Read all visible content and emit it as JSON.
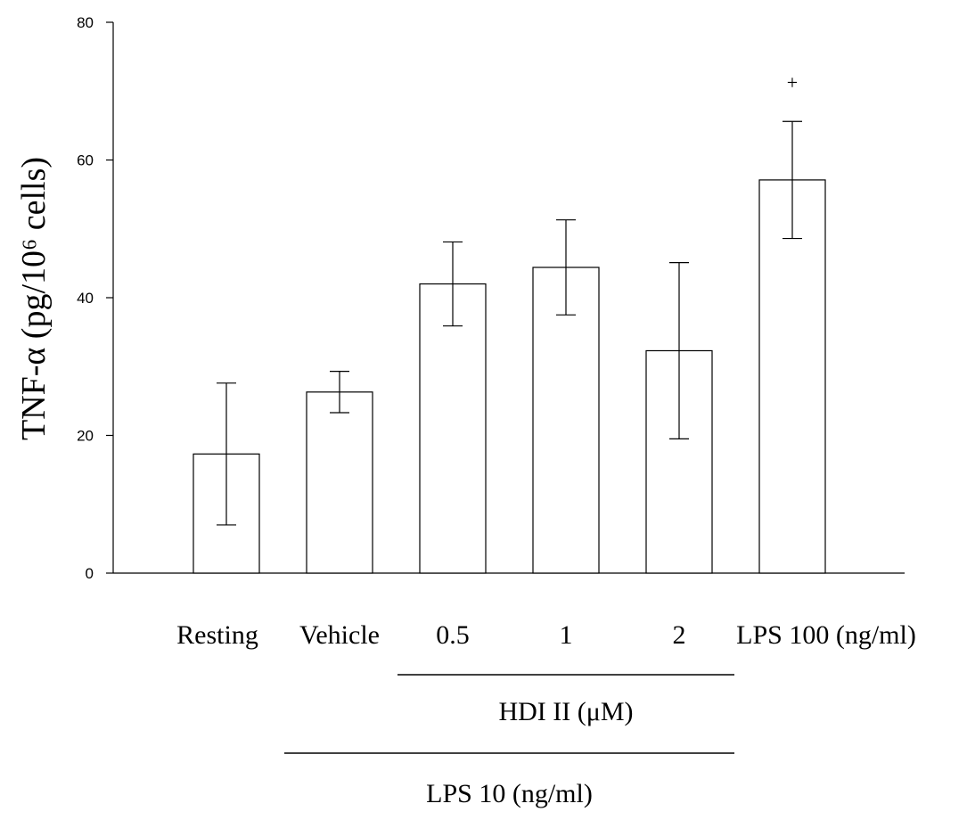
{
  "chart_data": {
    "type": "bar",
    "ylabel": "TNF-α (pg/10⁶ cells)",
    "ylim": [
      0,
      80
    ],
    "yticks": [
      0,
      20,
      40,
      60,
      80
    ],
    "grid": false,
    "categories": [
      "Resting",
      "Vehicle",
      "0.5",
      "1",
      "2",
      "LPS 100 (ng/ml)"
    ],
    "values": [
      17.3,
      26.3,
      42.0,
      44.4,
      32.3,
      57.1
    ],
    "errors": [
      10.3,
      3.0,
      6.1,
      6.9,
      12.8,
      8.5
    ],
    "annotations": [
      {
        "category": "LPS 100 (ng/ml)",
        "text": "+"
      }
    ],
    "groups": [
      {
        "label": "HDI II (μM)",
        "categories": [
          "0.5",
          "1",
          "2"
        ]
      },
      {
        "label": "LPS 10 (ng/ml)",
        "categories": [
          "Vehicle",
          "0.5",
          "1",
          "2"
        ]
      }
    ]
  }
}
